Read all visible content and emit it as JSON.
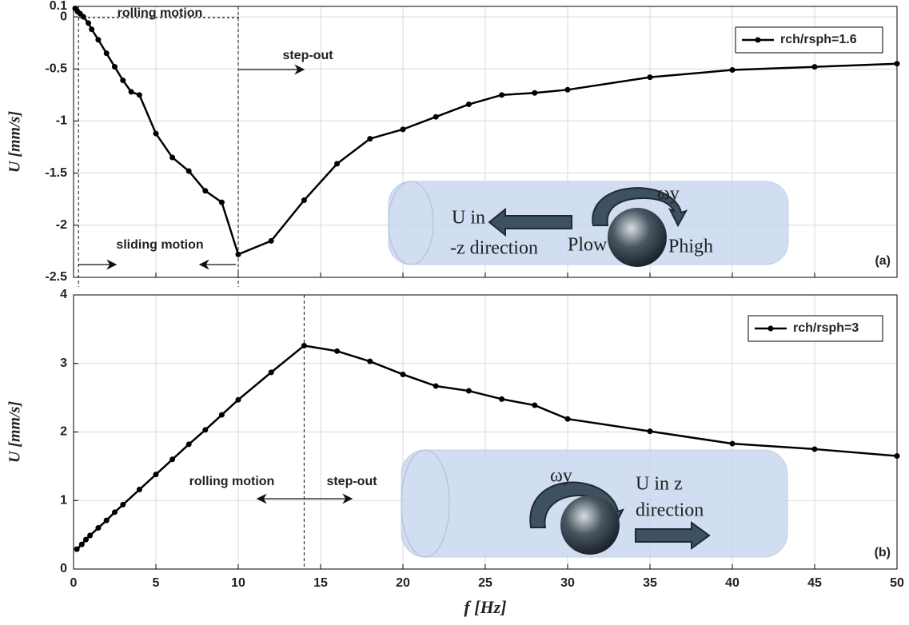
{
  "chart_data": [
    {
      "type": "line",
      "ylabel": "U [mm/s]",
      "panel_label": "(a)",
      "legend": "upper right",
      "grid": true,
      "xlim": [
        0,
        50
      ],
      "xticks": [
        0,
        5,
        10,
        15,
        20,
        25,
        30,
        35,
        40,
        45,
        50
      ],
      "ylim": [
        -2.5,
        0.1
      ],
      "yticks": [
        0.1,
        0,
        -0.5,
        -1,
        -1.5,
        -2,
        -2.5
      ],
      "vlines": [
        0.3,
        10
      ],
      "x": [
        0.1,
        0.25,
        0.4,
        0.6,
        0.9,
        1.1,
        1.5,
        2,
        2.5,
        3,
        3.5,
        4,
        5,
        6,
        7,
        8,
        9,
        10,
        12,
        14,
        16,
        18,
        20,
        22,
        24,
        26,
        28,
        30,
        35,
        40,
        45,
        50
      ],
      "series": [
        {
          "name": "rch/rsph=1.6",
          "color": "#000000",
          "values": [
            0.08,
            0.05,
            0.03,
            0,
            -0.06,
            -0.12,
            -0.22,
            -0.35,
            -0.48,
            -0.61,
            -0.72,
            -0.75,
            -1.12,
            -1.35,
            -1.48,
            -1.67,
            -1.78,
            -2.28,
            -2.15,
            -1.76,
            -1.41,
            -1.17,
            -1.08,
            -0.96,
            -0.84,
            -0.75,
            -0.73,
            -0.7,
            -0.58,
            -0.51,
            -0.48,
            -0.45
          ]
        }
      ],
      "annotations": [
        "rolling motion",
        "step-out",
        "sliding motion",
        "U in",
        "-z direction",
        "ωy",
        "Plow",
        "Phigh"
      ]
    },
    {
      "type": "line",
      "ylabel": "U [mm/s]",
      "xlabel": "f [Hz]",
      "panel_label": "(b)",
      "legend": "upper right",
      "grid": true,
      "xlim": [
        0,
        50
      ],
      "xticks": [
        0,
        5,
        10,
        15,
        20,
        25,
        30,
        35,
        40,
        45,
        50
      ],
      "ylim": [
        0,
        4
      ],
      "yticks": [
        0,
        1,
        2,
        3,
        4
      ],
      "vlines": [
        14
      ],
      "x": [
        0.2,
        0.5,
        0.75,
        1,
        1.5,
        2,
        2.5,
        3,
        4,
        5,
        6,
        7,
        8,
        9,
        10,
        12,
        14,
        16,
        18,
        20,
        22,
        24,
        26,
        28,
        30,
        35,
        40,
        45,
        50
      ],
      "series": [
        {
          "name": "rch/rsph=3",
          "color": "#000000",
          "values": [
            0.29,
            0.36,
            0.43,
            0.49,
            0.6,
            0.71,
            0.83,
            0.94,
            1.16,
            1.38,
            1.6,
            1.82,
            2.03,
            2.25,
            2.47,
            2.87,
            3.26,
            3.18,
            3.03,
            2.84,
            2.67,
            2.6,
            2.48,
            2.39,
            2.19,
            2.01,
            1.83,
            1.75,
            1.65
          ]
        }
      ],
      "annotations": [
        "rolling motion",
        "step-out",
        "ωy",
        "U in z",
        "direction"
      ]
    }
  ]
}
